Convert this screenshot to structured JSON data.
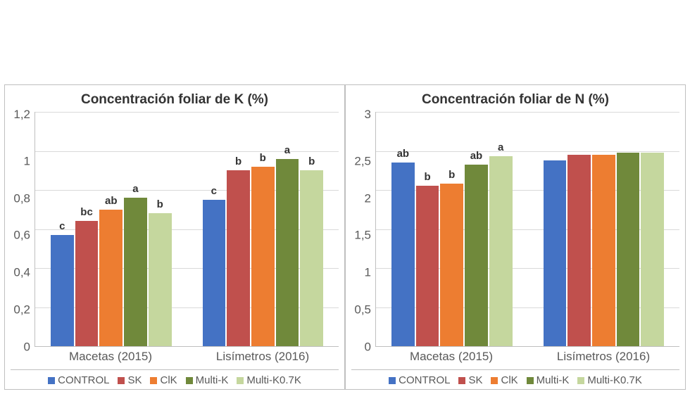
{
  "panels": [
    {
      "title": "Concentración foliar de K (%)",
      "title_fontsize": 19,
      "title_color": "#333333",
      "background_color": "#ffffff",
      "border_color": "#bfbfbf",
      "grid_color": "#d9d9d9",
      "tick_color": "#595959",
      "tick_fontsize": 17,
      "ymin": 0,
      "ymax": 1.2,
      "ystep": 0.2,
      "yticks": [
        "1,2",
        "1",
        "0,8",
        "0,6",
        "0,4",
        "0,2",
        "0"
      ],
      "groups": [
        {
          "label": "Macetas (2015)",
          "bars": [
            {
              "series": "CONTROL",
              "value": 0.57,
              "annot": "c"
            },
            {
              "series": "SK",
              "value": 0.64,
              "annot": "bc"
            },
            {
              "series": "ClK",
              "value": 0.7,
              "annot": "ab"
            },
            {
              "series": "Multi-K",
              "value": 0.76,
              "annot": "a"
            },
            {
              "series": "Multi-K0.7K",
              "value": 0.68,
              "annot": "b"
            }
          ]
        },
        {
          "label": "Lisímetros (2016)",
          "bars": [
            {
              "series": "CONTROL",
              "value": 0.75,
              "annot": "c"
            },
            {
              "series": "SK",
              "value": 0.9,
              "annot": "b"
            },
            {
              "series": "ClK",
              "value": 0.92,
              "annot": "b"
            },
            {
              "series": "Multi-K",
              "value": 0.96,
              "annot": "a"
            },
            {
              "series": "Multi-K0.7K",
              "value": 0.9,
              "annot": "b"
            }
          ]
        }
      ]
    },
    {
      "title": "Concentración foliar de N (%)",
      "title_fontsize": 19,
      "title_color": "#333333",
      "background_color": "#ffffff",
      "border_color": "#bfbfbf",
      "grid_color": "#d9d9d9",
      "tick_color": "#595959",
      "tick_fontsize": 17,
      "ymin": 0,
      "ymax": 3,
      "ystep": 0.5,
      "yticks": [
        "3",
        "2,5",
        "2",
        "1,5",
        "1",
        "0,5",
        "0"
      ],
      "groups": [
        {
          "label": "Macetas (2015)",
          "bars": [
            {
              "series": "CONTROL",
              "value": 2.35,
              "annot": "ab"
            },
            {
              "series": "SK",
              "value": 2.05,
              "annot": "b"
            },
            {
              "series": "ClK",
              "value": 2.08,
              "annot": "b"
            },
            {
              "series": "Multi-K",
              "value": 2.32,
              "annot": "ab"
            },
            {
              "series": "Multi-K0.7K",
              "value": 2.43,
              "annot": "a"
            }
          ]
        },
        {
          "label": "Lisímetros (2016)",
          "bars": [
            {
              "series": "CONTROL",
              "value": 2.38,
              "annot": ""
            },
            {
              "series": "SK",
              "value": 2.45,
              "annot": ""
            },
            {
              "series": "ClK",
              "value": 2.45,
              "annot": ""
            },
            {
              "series": "Multi-K",
              "value": 2.48,
              "annot": ""
            },
            {
              "series": "Multi-K0.7K",
              "value": 2.48,
              "annot": ""
            }
          ]
        }
      ]
    }
  ],
  "series_colors": {
    "CONTROL": "#4472c4",
    "SK": "#c0504d",
    "ClK": "#ed7d31",
    "Multi-K": "#70893b",
    "Multi-K0.7K": "#c5d79e"
  },
  "series_order": [
    "CONTROL",
    "SK",
    "ClK",
    "Multi-K",
    "Multi-K0.7K"
  ],
  "annot_fontsize": 15,
  "annot_color": "#333333"
}
